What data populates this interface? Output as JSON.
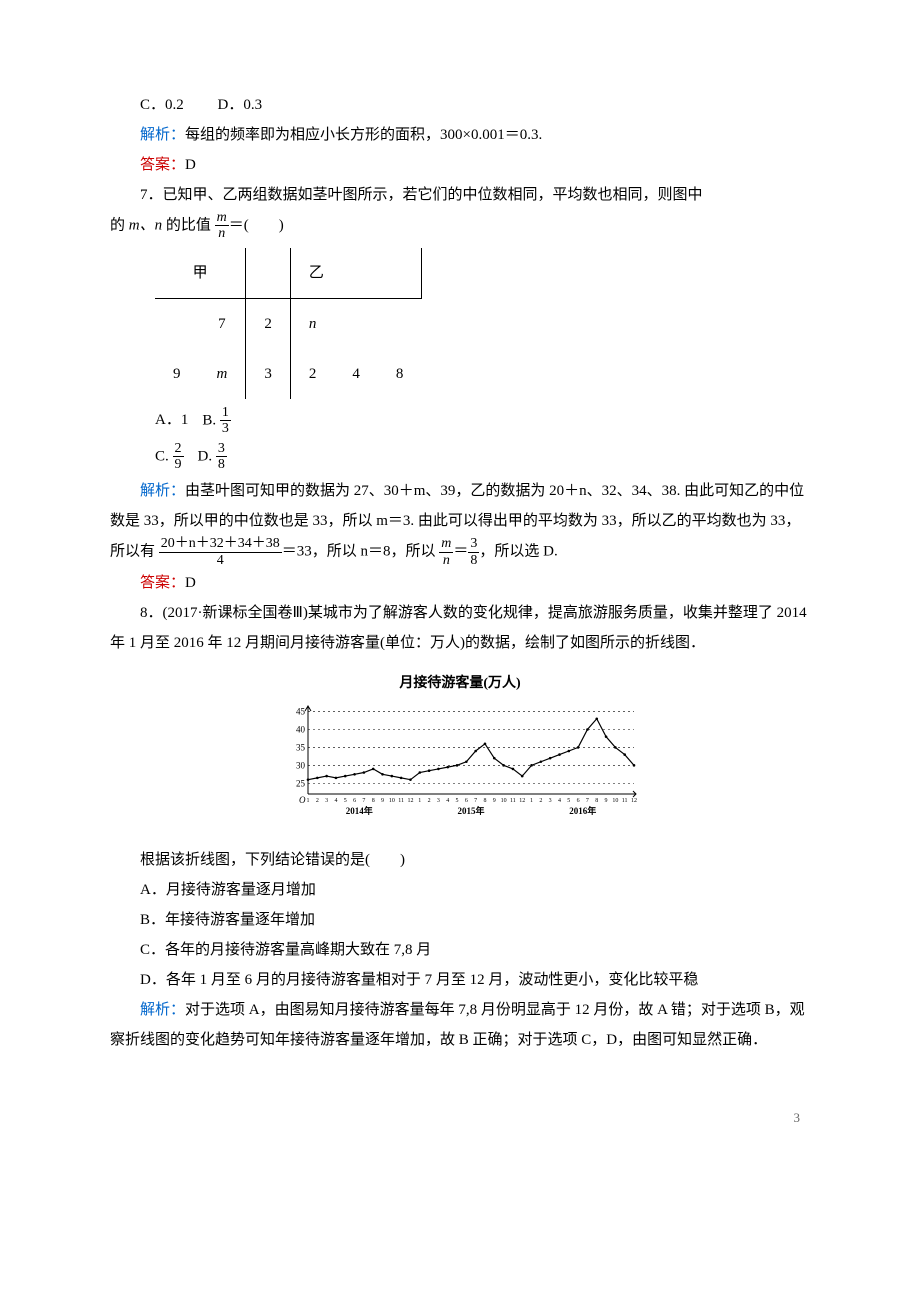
{
  "q6": {
    "optC": "C．0.2",
    "optD": "D．0.3",
    "explain_label": "解析：",
    "explain": "每组的频率即为相应小长方形的面积，300×0.001＝0.3.",
    "answer_label": "答案：",
    "answer": "D"
  },
  "q7": {
    "stem1": "7．已知甲、乙两组数据如茎叶图所示，若它们的中位数相同，平均数也相同，则图中",
    "stem2_prefix": "的 ",
    "stem2_mn": "m、n",
    "stem2_mid": " 的比值",
    "stem2_eq": "＝(　　)",
    "stemleaf": {
      "head_left": "甲",
      "head_right": "乙",
      "rows": [
        {
          "l1": "",
          "l2": "7",
          "stem": "2",
          "r1": "n",
          "r2": "",
          "r3": ""
        },
        {
          "l1": "9",
          "l2": "m",
          "stem": "3",
          "r1": "2",
          "r2": "4",
          "r3": "8"
        }
      ]
    },
    "opts": {
      "A": "A．1",
      "B_prefix": "B.",
      "B_num": "1",
      "B_den": "3",
      "C_prefix": "C.",
      "C_num": "2",
      "C_den": "9",
      "D_prefix": "D.",
      "D_num": "3",
      "D_den": "8"
    },
    "explain_label": "解析：",
    "explain1": "由茎叶图可知甲的数据为 27、30＋m、39，乙的数据为 20＋n、32、34、38. 由此可知乙的中位数是 33，所以甲的中位数也是 33，所以 m＝3. 由此可以得出甲的平均数为 33，所以乙的平均数也为 33，所以有",
    "frac_num": "20＋n＋32＋34＋38",
    "frac_den": "4",
    "explain2": "＝33，所以 n＝8，所以",
    "mn_num": "m",
    "mn_den": "n",
    "eq38_num": "3",
    "eq38_den": "8",
    "explain3": "，所以选 D.",
    "answer_label": "答案：",
    "answer": "D"
  },
  "q8": {
    "stem1": "8．(2017·新课标全国卷Ⅲ)某城市为了解游客人数的变化规律，提高旅游服务质量，收集并整理了 2014 年 1 月至 2016 年 12 月期间月接待游客量(单位：万人)的数据，绘制了如图所示的折线图．",
    "chart": {
      "title": "月接待游客量(万人)",
      "ylabel_color": "#000",
      "ylim": [
        0,
        45
      ],
      "yticks": [
        25,
        30,
        35,
        40,
        45
      ],
      "xlabels_years": [
        "2014年",
        "2015年",
        "2016年"
      ],
      "months_per_year": [
        1,
        2,
        3,
        4,
        5,
        6,
        7,
        8,
        9,
        10,
        11,
        12
      ],
      "line_color": "#000000",
      "dash_color": "#000000",
      "bg": "#ffffff",
      "points": [
        26,
        26.5,
        27,
        26.5,
        27,
        27.5,
        28,
        29,
        27.5,
        27,
        26.5,
        26,
        28,
        28.5,
        29,
        29.5,
        30,
        31,
        34,
        36,
        32,
        30,
        29,
        27,
        30,
        31,
        32,
        33,
        34,
        35,
        40,
        43,
        38,
        35,
        33,
        30
      ]
    },
    "prompt": "根据该折线图，下列结论错误的是(　　)",
    "A": "A．月接待游客量逐月增加",
    "B": "B．年接待游客量逐年增加",
    "C": "C．各年的月接待游客量高峰期大致在 7,8 月",
    "D": "D．各年 1 月至 6 月的月接待游客量相对于 7 月至 12 月，波动性更小，变化比较平稳",
    "explain_label": "解析：",
    "explain": "对于选项 A，由图易知月接待游客量每年 7,8 月份明显高于 12 月份，故 A 错；对于选项 B，观察折线图的变化趋势可知年接待游客量逐年增加，故 B 正确；对于选项 C，D，由图可知显然正确．"
  },
  "pagenum": "3"
}
